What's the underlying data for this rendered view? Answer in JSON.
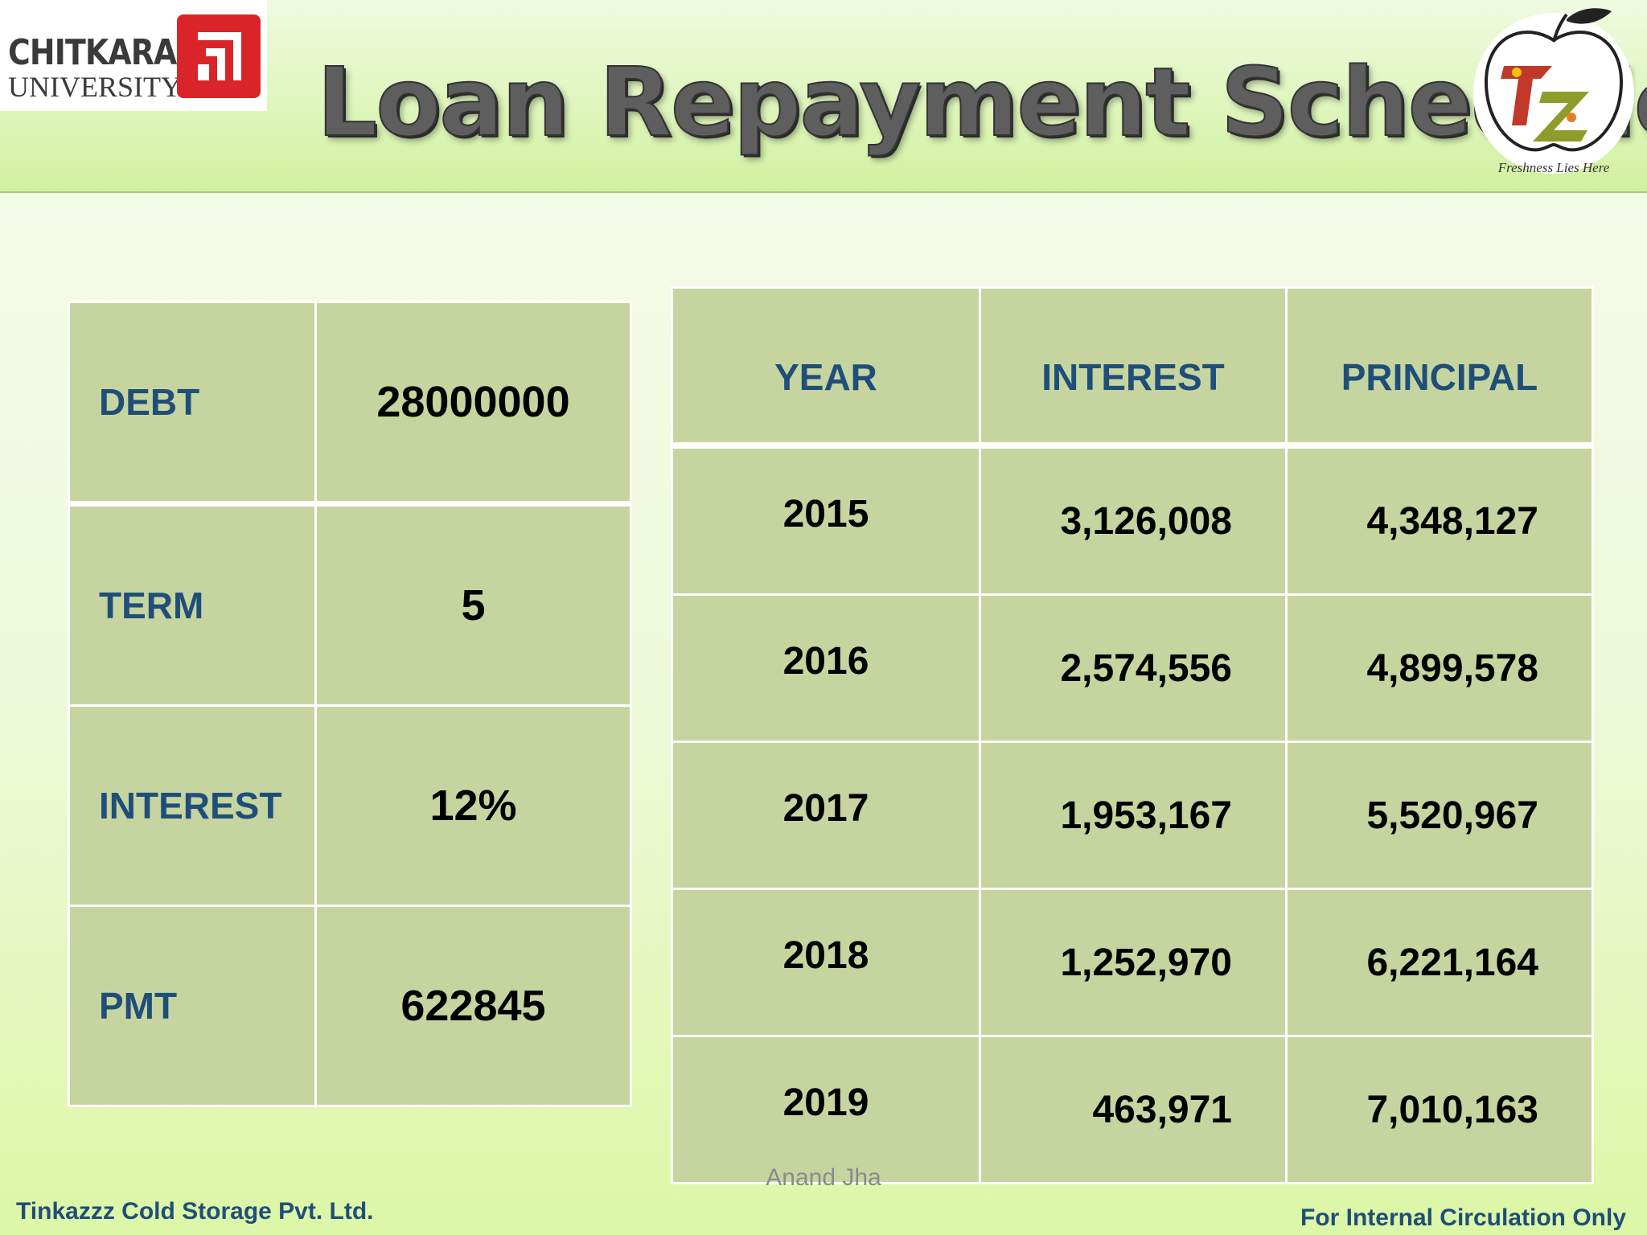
{
  "header": {
    "title": "Loan Repayment Schedule",
    "university_logo": {
      "name": "CHITKARA",
      "sub": "UNIVERSITY"
    },
    "company_logo": {
      "tagline": "Freshness Lies Here",
      "monogram": "TZ"
    }
  },
  "params": [
    {
      "label": "DEBT",
      "value": "28000000"
    },
    {
      "label": "TERM",
      "value": "5"
    },
    {
      "label": "INTEREST",
      "value": "12%"
    },
    {
      "label": "PMT",
      "value": "622845"
    }
  ],
  "schedule": {
    "headers": [
      "YEAR",
      "INTEREST",
      "PRINCIPAL"
    ],
    "rows": [
      {
        "year": "2015",
        "interest": "3,126,008",
        "principal": "4,348,127"
      },
      {
        "year": "2016",
        "interest": "2,574,556",
        "principal": "4,899,578"
      },
      {
        "year": "2017",
        "interest": "1,953,167",
        "principal": "5,520,967"
      },
      {
        "year": "2018",
        "interest": "1,252,970",
        "principal": "6,221,164"
      },
      {
        "year": "2019",
        "interest": "463,971",
        "principal": "7,010,163"
      }
    ]
  },
  "footer": {
    "author": "Anand Jha",
    "company": "Tinkazzz Cold Storage Pvt. Ltd.",
    "notice": "For Internal Circulation Only"
  },
  "colors": {
    "heading_blue": "#1f4e79",
    "cell_fill": "#c6d5a0",
    "logo_red": "#d9252a"
  }
}
